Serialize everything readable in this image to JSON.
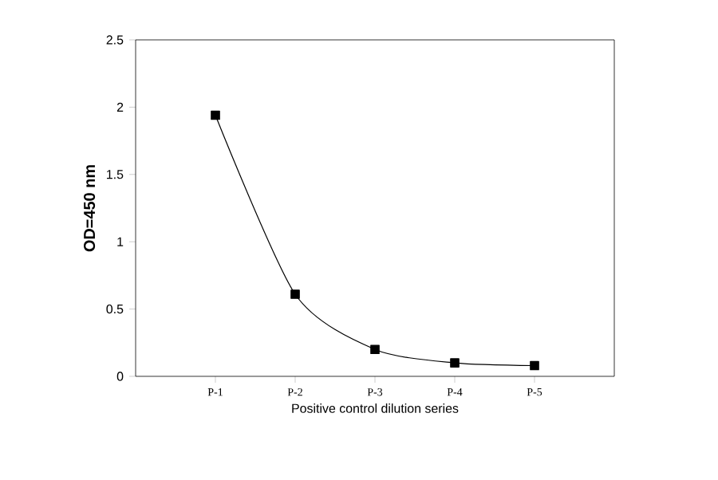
{
  "chart_data": {
    "type": "line",
    "xlabel": "Positive control dilution series",
    "ylabel": "OD=450 nm",
    "categories": [
      "P-1",
      "P-2",
      "P-3",
      "P-4",
      "P-5"
    ],
    "values": [
      1.94,
      0.61,
      0.2,
      0.1,
      0.08
    ],
    "color": "#000000",
    "marker": "square",
    "line_style": "solid",
    "ylim": [
      0,
      2.5
    ],
    "yticks": [
      0,
      0.5,
      1,
      1.5,
      2,
      2.5
    ]
  }
}
